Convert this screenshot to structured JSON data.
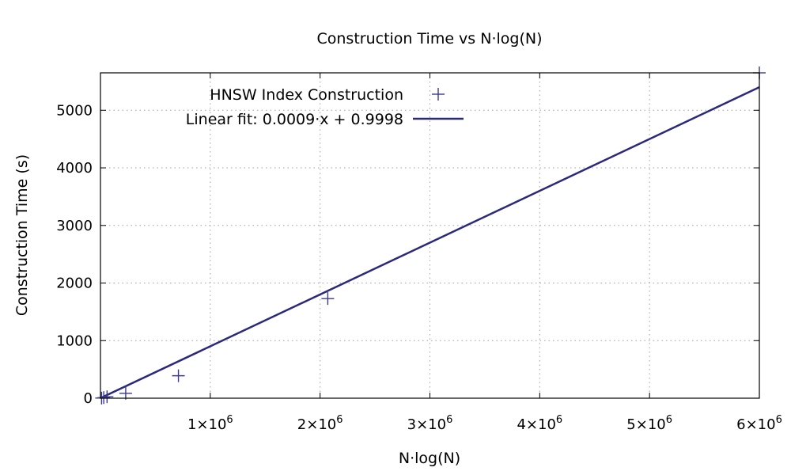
{
  "chart_data": {
    "type": "scatter",
    "title": "Construction Time vs N·log(N)",
    "xlabel": "N·log(N)",
    "ylabel": "Construction Time (s)",
    "xlim": [
      0,
      6000000
    ],
    "ylim": [
      0,
      5650
    ],
    "grid": true,
    "legend_position": "top-left",
    "x_ticks": [
      {
        "value": 1000000,
        "mantissa": "1×10",
        "exp": "6"
      },
      {
        "value": 2000000,
        "mantissa": "2×10",
        "exp": "6"
      },
      {
        "value": 3000000,
        "mantissa": "3×10",
        "exp": "6"
      },
      {
        "value": 4000000,
        "mantissa": "4×10",
        "exp": "6"
      },
      {
        "value": 5000000,
        "mantissa": "5×10",
        "exp": "6"
      },
      {
        "value": 6000000,
        "mantissa": "6×10",
        "exp": "6"
      }
    ],
    "y_ticks": [
      0,
      1000,
      2000,
      3000,
      4000,
      5000
    ],
    "series": [
      {
        "name": "HNSW Index Construction",
        "kind": "points",
        "marker": "plus",
        "color": "#3a3a8c",
        "x": [
          10000,
          30000,
          60000,
          230000,
          710000,
          2070000,
          6000000
        ],
        "y": [
          2,
          10,
          25,
          85,
          390,
          1730,
          5650
        ]
      },
      {
        "name": "Linear fit: 0.0009·x + 0.9998",
        "kind": "line",
        "color": "#2b2a7a",
        "slope": 0.0009,
        "intercept": 0.9998
      }
    ]
  }
}
